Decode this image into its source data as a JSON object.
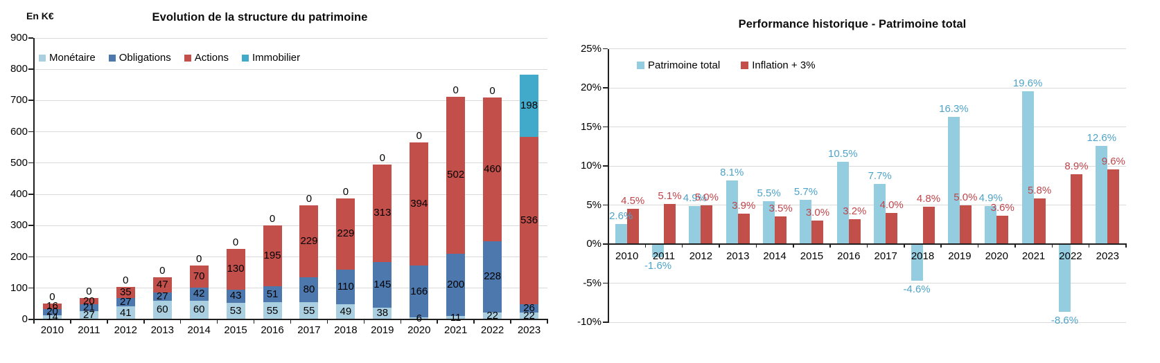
{
  "chart_data": [
    {
      "id": "patrimoine",
      "type": "bar",
      "subtype": "stacked",
      "title": "Evolution de la structure du patrimoine",
      "unit_label": "En K€",
      "categories": [
        "2010",
        "2011",
        "2012",
        "2013",
        "2014",
        "2015",
        "2016",
        "2017",
        "2018",
        "2019",
        "2020",
        "2021",
        "2022",
        "2023"
      ],
      "series": [
        {
          "name": "Monétaire",
          "color": "#A9CFE0",
          "values": [
            14,
            27,
            41,
            60,
            60,
            53,
            55,
            55,
            49,
            38,
            6,
            11,
            22,
            22
          ]
        },
        {
          "name": "Obligations",
          "color": "#4C78AE",
          "values": [
            20,
            21,
            27,
            27,
            42,
            43,
            51,
            80,
            110,
            145,
            166,
            200,
            228,
            26
          ]
        },
        {
          "name": "Actions",
          "color": "#C34F4B",
          "values": [
            16,
            20,
            35,
            47,
            70,
            130,
            195,
            229,
            229,
            313,
            394,
            502,
            460,
            536
          ]
        },
        {
          "name": "Immobilier",
          "color": "#41A9C9",
          "values": [
            0,
            0,
            0,
            0,
            0,
            0,
            0,
            0,
            0,
            0,
            0,
            0,
            0,
            198
          ]
        }
      ],
      "y_axis": {
        "min": 0,
        "max": 900,
        "step": 100,
        "tick_labels": [
          "0",
          "100",
          "200",
          "300",
          "400",
          "500",
          "600",
          "700",
          "800",
          "900"
        ]
      },
      "grid": true,
      "legend_position": "top-left-inside",
      "data_label_color": "#000000"
    },
    {
      "id": "performance",
      "type": "bar",
      "subtype": "grouped",
      "title": "Performance historique - Patrimoine total",
      "categories": [
        "2010",
        "2011",
        "2012",
        "2013",
        "2014",
        "2015",
        "2016",
        "2017",
        "2018",
        "2019",
        "2020",
        "2021",
        "2022",
        "2023"
      ],
      "series": [
        {
          "name": "Patrimoine total",
          "color": "#93CDDF",
          "label_color": "#4EA3C9",
          "values_pct": [
            2.6,
            -1.6,
            4.9,
            8.1,
            5.5,
            5.7,
            10.5,
            7.7,
            -4.6,
            16.3,
            4.9,
            19.6,
            -8.6,
            12.6
          ],
          "labels": [
            "2.6%",
            "-1.6%",
            "4.9%",
            "8.1%",
            "5.5%",
            "5.7%",
            "10.5%",
            "7.7%",
            "-4.6%",
            "16.3%",
            "4.9%",
            "19.6%",
            "-8.6%",
            "12.6%"
          ]
        },
        {
          "name": "Inflation + 3%",
          "color": "#C34F4B",
          "label_color": "#C0454B",
          "values_pct": [
            4.5,
            5.1,
            5.0,
            3.9,
            3.5,
            3.0,
            3.2,
            4.0,
            4.8,
            5.0,
            3.6,
            5.8,
            8.9,
            9.6
          ],
          "labels": [
            "4.5%",
            "5.1%",
            "5.0%",
            "3.9%",
            "3.5%",
            "3.0%",
            "3.2%",
            "4.0%",
            "4.8%",
            "5.0%",
            "3.6%",
            "5.8%",
            "8.9%",
            "9.6%"
          ]
        }
      ],
      "y_axis": {
        "min": -10,
        "max": 25,
        "step": 5,
        "tick_labels": [
          "25%",
          "20%",
          "15%",
          "10%",
          "5%",
          "0%",
          "-5%",
          "-10%"
        ]
      },
      "grid": true,
      "legend_position": "top-left-inside"
    }
  ],
  "colors": {
    "gridline": "#D9D9D9",
    "axis": "#1F1F1F",
    "background": "#FFFFFF"
  }
}
